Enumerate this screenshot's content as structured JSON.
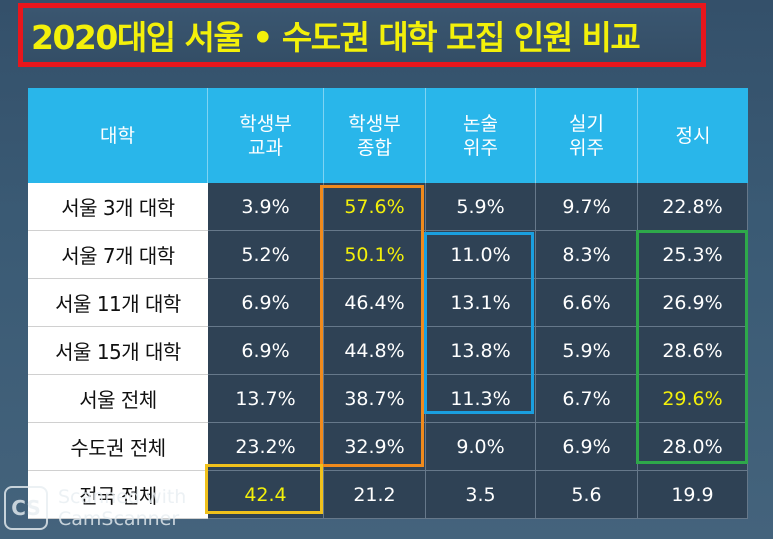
{
  "title": "2020대입 서울 • 수도권 대학 모집 인원 비교",
  "table": {
    "header": {
      "university": "대학",
      "cols": [
        {
          "line1": "학생부",
          "line2": "교과"
        },
        {
          "line1": "학생부",
          "line2": "종합"
        },
        {
          "line1": "논술",
          "line2": "위주"
        },
        {
          "line1": "실기",
          "line2": "위주"
        },
        {
          "line1": "정시",
          "line2": ""
        }
      ]
    },
    "rows": [
      {
        "label": "서울 3개 대학",
        "values": [
          "3.9%",
          "57.6%",
          "5.9%",
          "9.7%",
          "22.8%"
        ]
      },
      {
        "label": "서울 7개 대학",
        "values": [
          "5.2%",
          "50.1%",
          "11.0%",
          "8.3%",
          "25.3%"
        ]
      },
      {
        "label": "서울 11개 대학",
        "values": [
          "6.9%",
          "46.4%",
          "13.1%",
          "6.6%",
          "26.9%"
        ]
      },
      {
        "label": "서울 15개 대학",
        "values": [
          "6.9%",
          "44.8%",
          "13.8%",
          "5.9%",
          "28.6%"
        ]
      },
      {
        "label": "서울 전체",
        "values": [
          "13.7%",
          "38.7%",
          "11.3%",
          "6.7%",
          "29.6%"
        ]
      },
      {
        "label": "수도권 전체",
        "values": [
          "23.2%",
          "32.9%",
          "9.0%",
          "6.9%",
          "28.0%"
        ]
      },
      {
        "label": "전국 전체",
        "values": [
          "42.4",
          "21.2",
          "3.5",
          "5.6",
          "19.9"
        ]
      }
    ],
    "highlighted_cells": [
      [
        0,
        1
      ],
      [
        1,
        1
      ],
      [
        4,
        4
      ],
      [
        6,
        0
      ]
    ]
  },
  "colors": {
    "title_text": "#f3f00a",
    "title_border": "#e8161c",
    "header_bg": "#29b6ea",
    "cell_bg": "#2f4255",
    "highlight_text": "#f3f00a",
    "box_orange": "#f08a1c",
    "box_blue": "#1a9fe0",
    "box_green": "#2ea84a",
    "box_yellow": "#f0c11c"
  },
  "watermark": {
    "logo": "CS",
    "line1": "Scanned with",
    "line2": "CamScanner"
  }
}
